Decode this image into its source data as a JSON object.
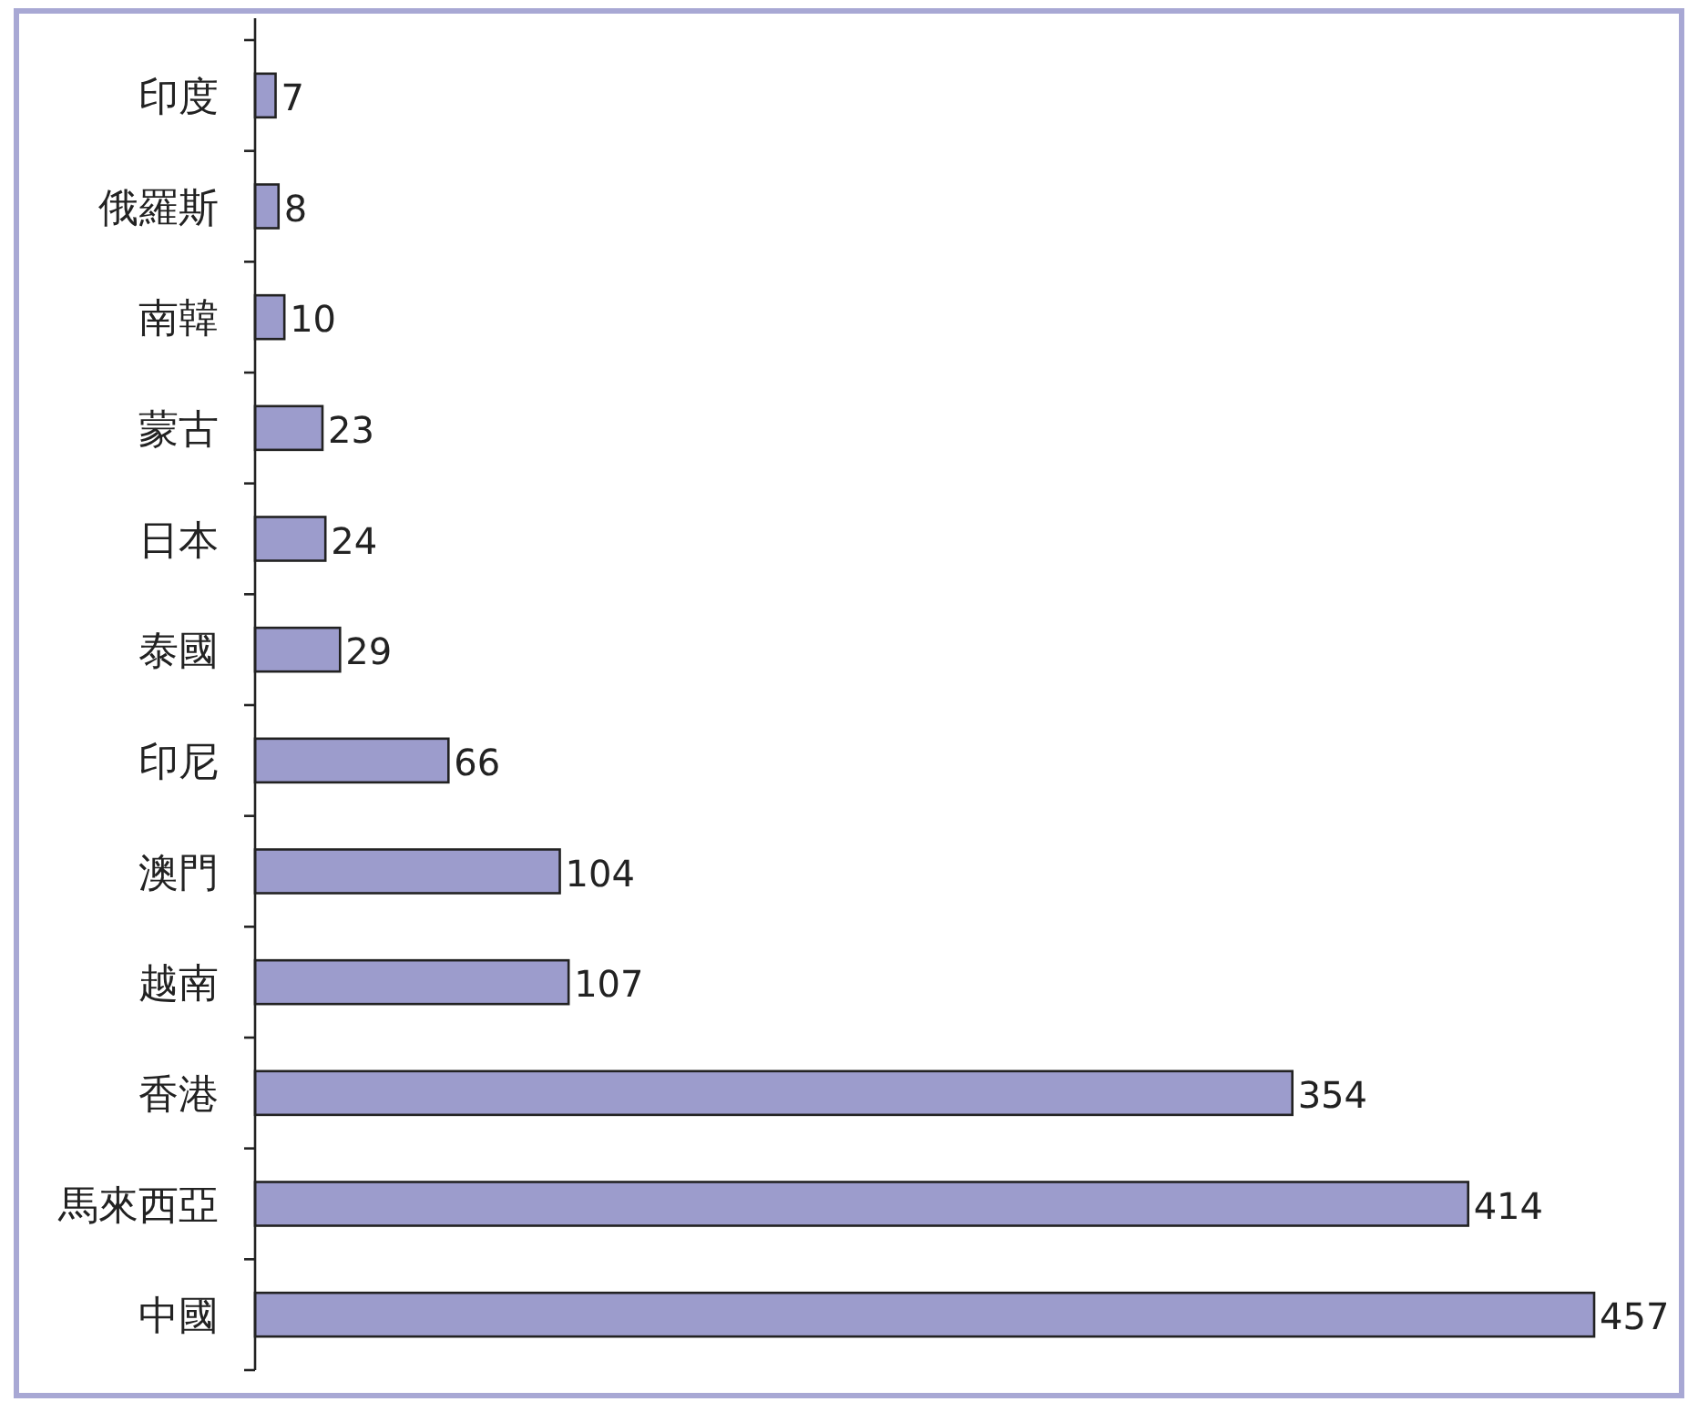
{
  "chart_data": {
    "type": "bar",
    "orientation": "horizontal",
    "categories": [
      "印度",
      "俄羅斯",
      "南韓",
      "蒙古",
      "日本",
      "泰國",
      "印尼",
      "澳門",
      "越南",
      "香港",
      "馬來西亞",
      "中國"
    ],
    "values": [
      7,
      8,
      10,
      23,
      24,
      29,
      66,
      104,
      107,
      354,
      414,
      457
    ],
    "color": "#9c9ccc",
    "data_labels": true
  }
}
